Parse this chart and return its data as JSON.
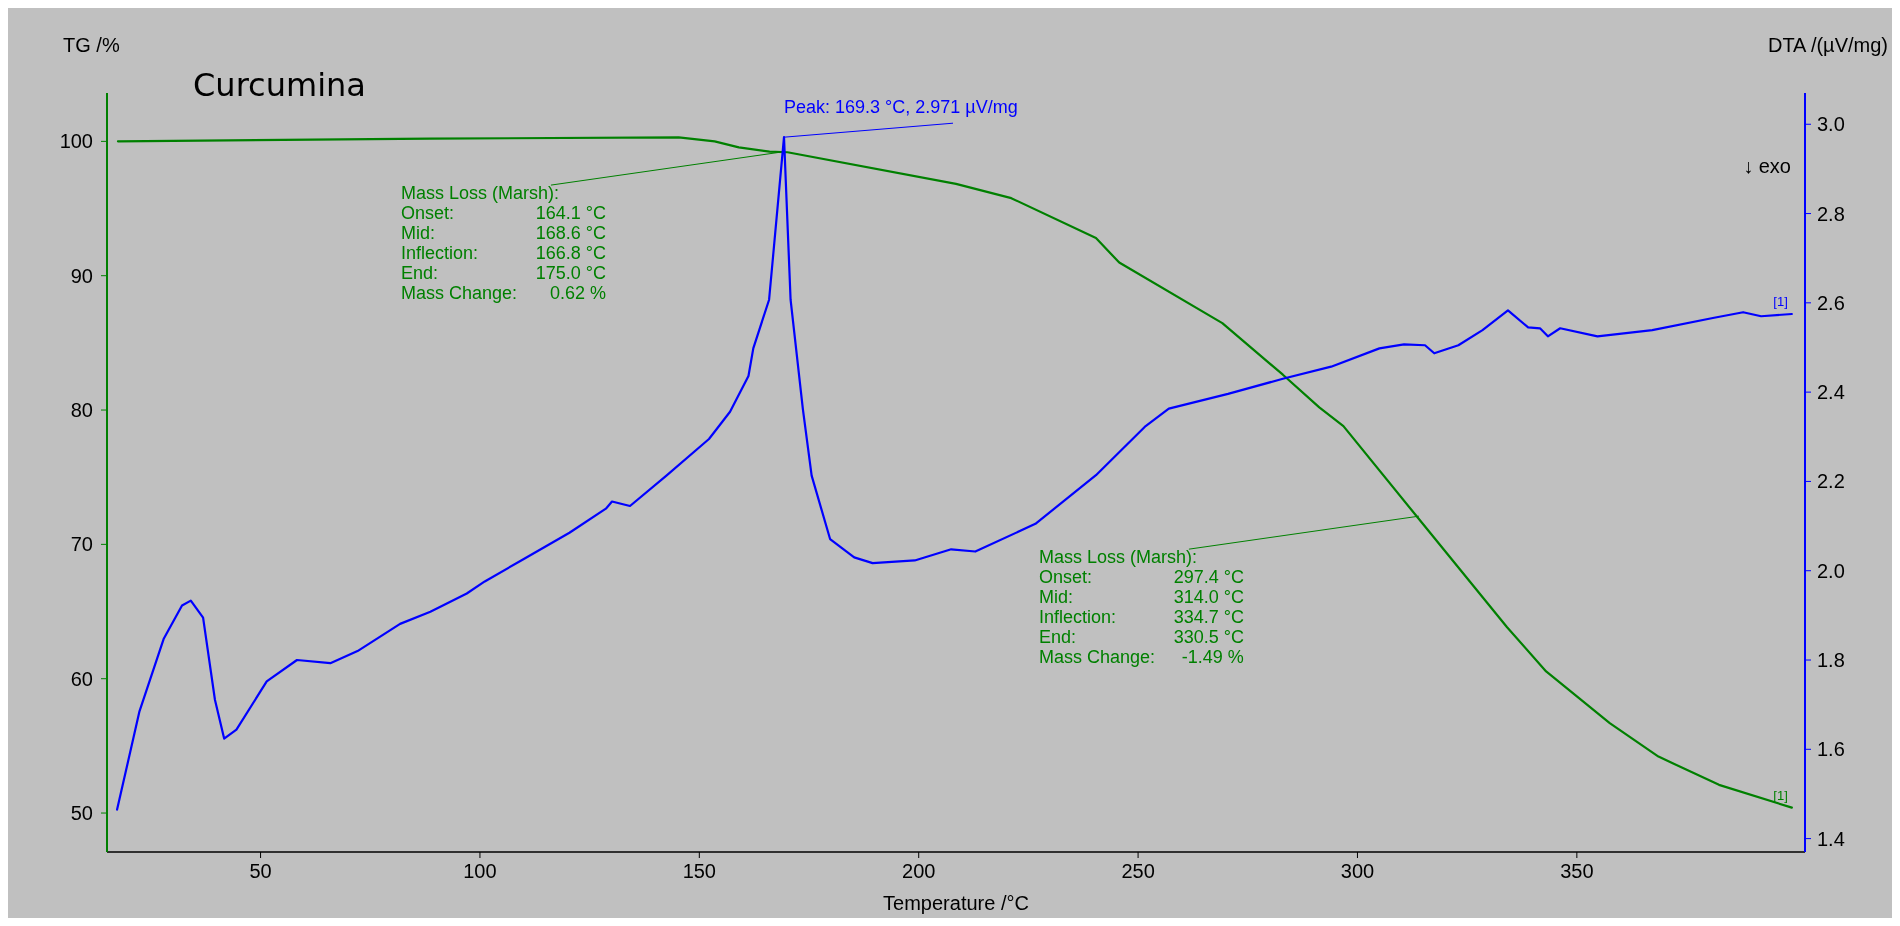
{
  "chart_data": {
    "type": "line",
    "title": "Curcumina",
    "xlabel": "Temperature /°C",
    "ylabel": "TG /%",
    "y2label": "DTA /(µV/mg)",
    "xlim": [
      15,
      402
    ],
    "xticks": [
      50,
      100,
      150,
      200,
      250,
      300,
      350
    ],
    "ylim": [
      47.1,
      103.6
    ],
    "yticks": [
      50,
      60,
      70,
      80,
      90,
      100
    ],
    "y2lim": [
      1.37,
      3.07
    ],
    "y2ticks": [
      {
        "value": 1.4,
        "label": "1.4"
      },
      {
        "value": 1.6,
        "label": "1.6"
      },
      {
        "value": 1.8,
        "label": "1.8"
      },
      {
        "value": 2.0,
        "label": "2.0"
      },
      {
        "value": 2.2,
        "label": "2.2"
      },
      {
        "value": 2.4,
        "label": "2.4"
      },
      {
        "value": 2.6,
        "label": "2.6"
      },
      {
        "value": 2.8,
        "label": "2.8"
      },
      {
        "value": 3.0,
        "label": "3.0"
      }
    ],
    "series": [
      {
        "name": "[1]",
        "color": "#008000",
        "x": [
          17.5,
          88.6,
          145.3,
          153.5,
          159,
          166,
          170.1,
          208.5,
          221.1,
          240.4,
          245.7,
          269.2,
          283,
          291.3,
          296.8,
          313.4,
          334.1,
          343,
          357.5,
          368.6,
          382.4,
          399
        ],
        "values": [
          100.0,
          100.2,
          100.3,
          100.0,
          99.55,
          99.23,
          99.19,
          96.84,
          95.77,
          92.8,
          90.98,
          86.47,
          82.63,
          80.2,
          78.8,
          72.13,
          63.83,
          60.54,
          56.7,
          54.2,
          52.1,
          50.4
        ]
      },
      {
        "name": "[1]",
        "color": "#0000ff",
        "axis": "y2",
        "x": [
          17.3,
          22.4,
          27.9,
          32.1,
          34.1,
          36.9,
          39.6,
          41.7,
          44.5,
          51.4,
          58.3,
          65.9,
          72.1,
          81.8,
          88.7,
          97,
          101.1,
          109.4,
          120.4,
          128.7,
          130.1,
          134.2,
          142.5,
          152.2,
          157,
          161.2,
          162.3,
          165.9,
          169.3,
          170.8,
          173.6,
          175.6,
          179.8,
          185.3,
          189.5,
          199.1,
          207.4,
          212.9,
          226.6,
          240.4,
          251.5,
          257,
          270.5,
          283,
          294,
          305,
          310.6,
          315.4,
          317.5,
          323,
          328.5,
          334.3,
          338.9,
          341.6,
          343.4,
          346.2,
          354.7,
          367.2,
          381,
          387.9,
          392,
          399
        ],
        "values": [
          1.465,
          1.685,
          1.847,
          1.922,
          1.933,
          1.895,
          1.711,
          1.624,
          1.644,
          1.752,
          1.8,
          1.793,
          1.82,
          1.881,
          1.908,
          1.949,
          1.976,
          2.023,
          2.085,
          2.139,
          2.155,
          2.145,
          2.213,
          2.295,
          2.356,
          2.436,
          2.498,
          2.607,
          2.971,
          2.607,
          2.362,
          2.213,
          2.071,
          2.03,
          2.017,
          2.023,
          2.048,
          2.043,
          2.105,
          2.214,
          2.322,
          2.363,
          2.396,
          2.43,
          2.457,
          2.498,
          2.507,
          2.505,
          2.487,
          2.505,
          2.539,
          2.583,
          2.545,
          2.543,
          2.525,
          2.543,
          2.525,
          2.539,
          2.566,
          2.579,
          2.57,
          2.575
        ]
      }
    ],
    "annotations": [
      "↓ exo",
      "Peak: 169.3 °C, 2.971 µV/mg",
      {
        "text": "Mass Loss (Marsh):",
        "x": 168.6,
        "y": 99.2
      },
      "Onset: 164.1 °C",
      "Mid: 168.6 °C",
      "Inflection: 166.8 °C",
      "End: 175.0 °C",
      "Mass Change: 0.62 %",
      {
        "text": "Mass Loss (Marsh):",
        "x": 314.0,
        "y": 72.1
      },
      "Onset: 297.4 °C",
      "Mid: 314.0 °C",
      "Inflection: 334.7 °C",
      "End: 330.5 °C",
      "Mass Change: -1.49 %"
    ]
  }
}
